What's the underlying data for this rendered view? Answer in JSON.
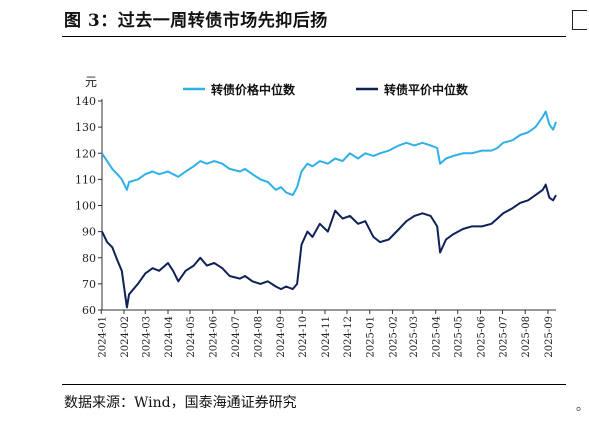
{
  "figure": {
    "title": "图 3：过去一周转债市场先抑后扬",
    "source": "数据来源：Wind，国泰海通证券研究"
  },
  "colors": {
    "price_median": "#2fb0e6",
    "parity_median": "#0f2157",
    "axis": "#333333"
  },
  "chart_data": {
    "type": "line",
    "ylabel": "元",
    "ylim": [
      60,
      140
    ],
    "yticks": [
      60,
      70,
      80,
      90,
      100,
      110,
      120,
      130,
      140
    ],
    "xlim": [
      "2024-01-02",
      "2025-09-12"
    ],
    "xticks": [
      "2024-01",
      "2024-02",
      "2024-03",
      "2024-04",
      "2024-05",
      "2024-06",
      "2024-07",
      "2024-08",
      "2024-09",
      "2024-10",
      "2024-11",
      "2024-12",
      "2025-01",
      "2025-02",
      "2025-03",
      "2025-04",
      "2025-05",
      "2025-06",
      "2025-07",
      "2025-08",
      "2025-09"
    ],
    "grid": false,
    "legend": "top",
    "series": [
      {
        "name": "转债价格中位数",
        "color": "#2fb0e6",
        "points": [
          [
            "2024-01-02",
            120
          ],
          [
            "2024-01-09",
            117
          ],
          [
            "2024-01-16",
            114
          ],
          [
            "2024-01-23",
            112
          ],
          [
            "2024-01-29",
            110
          ],
          [
            "2024-02-05",
            106
          ],
          [
            "2024-02-08",
            109
          ],
          [
            "2024-02-20",
            110
          ],
          [
            "2024-03-01",
            112
          ],
          [
            "2024-03-11",
            113
          ],
          [
            "2024-03-20",
            112
          ],
          [
            "2024-04-01",
            113
          ],
          [
            "2024-04-08",
            112
          ],
          [
            "2024-04-15",
            111
          ],
          [
            "2024-04-25",
            113
          ],
          [
            "2024-05-06",
            115
          ],
          [
            "2024-05-15",
            117
          ],
          [
            "2024-05-24",
            116
          ],
          [
            "2024-06-03",
            117
          ],
          [
            "2024-06-14",
            116
          ],
          [
            "2024-06-24",
            114
          ],
          [
            "2024-07-08",
            113
          ],
          [
            "2024-07-15",
            114
          ],
          [
            "2024-07-25",
            112
          ],
          [
            "2024-08-05",
            110
          ],
          [
            "2024-08-15",
            109
          ],
          [
            "2024-08-26",
            106
          ],
          [
            "2024-09-02",
            107
          ],
          [
            "2024-09-09",
            105
          ],
          [
            "2024-09-18",
            104
          ],
          [
            "2024-09-24",
            107
          ],
          [
            "2024-09-30",
            113
          ],
          [
            "2024-10-08",
            116
          ],
          [
            "2024-10-15",
            115
          ],
          [
            "2024-10-25",
            117
          ],
          [
            "2024-11-05",
            116
          ],
          [
            "2024-11-15",
            118
          ],
          [
            "2024-11-25",
            117
          ],
          [
            "2024-12-05",
            120
          ],
          [
            "2024-12-16",
            118
          ],
          [
            "2024-12-26",
            120
          ],
          [
            "2025-01-06",
            119
          ],
          [
            "2025-01-15",
            120
          ],
          [
            "2025-01-27",
            121
          ],
          [
            "2025-02-10",
            123
          ],
          [
            "2025-02-20",
            124
          ],
          [
            "2025-03-03",
            123
          ],
          [
            "2025-03-14",
            124
          ],
          [
            "2025-03-25",
            123
          ],
          [
            "2025-04-03",
            122
          ],
          [
            "2025-04-07",
            116
          ],
          [
            "2025-04-15",
            118
          ],
          [
            "2025-04-25",
            119
          ],
          [
            "2025-05-08",
            120
          ],
          [
            "2025-05-20",
            120
          ],
          [
            "2025-06-03",
            121
          ],
          [
            "2025-06-16",
            121
          ],
          [
            "2025-06-24",
            122
          ],
          [
            "2025-07-02",
            124
          ],
          [
            "2025-07-15",
            125
          ],
          [
            "2025-07-25",
            127
          ],
          [
            "2025-08-05",
            128
          ],
          [
            "2025-08-15",
            130
          ],
          [
            "2025-08-25",
            134
          ],
          [
            "2025-08-29",
            136
          ],
          [
            "2025-09-03",
            131
          ],
          [
            "2025-09-08",
            129
          ],
          [
            "2025-09-12",
            132
          ]
        ]
      },
      {
        "name": "转债平价中位数",
        "color": "#0f2157",
        "points": [
          [
            "2024-01-02",
            90
          ],
          [
            "2024-01-09",
            86
          ],
          [
            "2024-01-16",
            84
          ],
          [
            "2024-01-23",
            79
          ],
          [
            "2024-01-29",
            75
          ],
          [
            "2024-02-05",
            61
          ],
          [
            "2024-02-08",
            66
          ],
          [
            "2024-02-20",
            70
          ],
          [
            "2024-03-01",
            74
          ],
          [
            "2024-03-11",
            76
          ],
          [
            "2024-03-20",
            75
          ],
          [
            "2024-04-01",
            78
          ],
          [
            "2024-04-08",
            75
          ],
          [
            "2024-04-15",
            71
          ],
          [
            "2024-04-25",
            75
          ],
          [
            "2024-05-06",
            77
          ],
          [
            "2024-05-15",
            80
          ],
          [
            "2024-05-24",
            77
          ],
          [
            "2024-06-03",
            78
          ],
          [
            "2024-06-14",
            76
          ],
          [
            "2024-06-24",
            73
          ],
          [
            "2024-07-08",
            72
          ],
          [
            "2024-07-15",
            73
          ],
          [
            "2024-07-25",
            71
          ],
          [
            "2024-08-05",
            70
          ],
          [
            "2024-08-15",
            71
          ],
          [
            "2024-08-26",
            69
          ],
          [
            "2024-09-02",
            68
          ],
          [
            "2024-09-09",
            69
          ],
          [
            "2024-09-18",
            68
          ],
          [
            "2024-09-24",
            70
          ],
          [
            "2024-09-30",
            85
          ],
          [
            "2024-10-08",
            90
          ],
          [
            "2024-10-15",
            88
          ],
          [
            "2024-10-25",
            93
          ],
          [
            "2024-11-05",
            90
          ],
          [
            "2024-11-15",
            98
          ],
          [
            "2024-11-25",
            95
          ],
          [
            "2024-12-05",
            96
          ],
          [
            "2024-12-16",
            93
          ],
          [
            "2024-12-26",
            94
          ],
          [
            "2025-01-06",
            88
          ],
          [
            "2025-01-15",
            86
          ],
          [
            "2025-01-27",
            87
          ],
          [
            "2025-02-10",
            91
          ],
          [
            "2025-02-20",
            94
          ],
          [
            "2025-03-03",
            96
          ],
          [
            "2025-03-14",
            97
          ],
          [
            "2025-03-25",
            96
          ],
          [
            "2025-04-03",
            92
          ],
          [
            "2025-04-07",
            82
          ],
          [
            "2025-04-15",
            87
          ],
          [
            "2025-04-25",
            89
          ],
          [
            "2025-05-08",
            91
          ],
          [
            "2025-05-20",
            92
          ],
          [
            "2025-06-03",
            92
          ],
          [
            "2025-06-16",
            93
          ],
          [
            "2025-06-24",
            95
          ],
          [
            "2025-07-02",
            97
          ],
          [
            "2025-07-15",
            99
          ],
          [
            "2025-07-25",
            101
          ],
          [
            "2025-08-05",
            102
          ],
          [
            "2025-08-15",
            104
          ],
          [
            "2025-08-25",
            106
          ],
          [
            "2025-08-29",
            108
          ],
          [
            "2025-09-03",
            103
          ],
          [
            "2025-09-08",
            102
          ],
          [
            "2025-09-12",
            104
          ]
        ]
      }
    ]
  }
}
